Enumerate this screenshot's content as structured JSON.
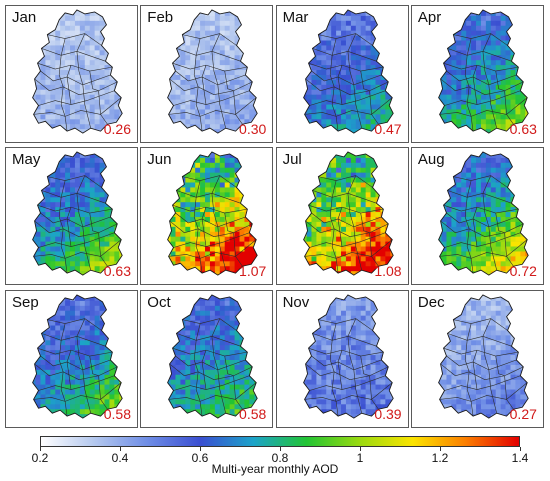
{
  "panels": [
    {
      "month": "Jan",
      "mean": "0.26",
      "level": 0.2,
      "hot": 0.0
    },
    {
      "month": "Feb",
      "mean": "0.30",
      "level": 0.2,
      "hot": 0.05
    },
    {
      "month": "Mar",
      "mean": "0.47",
      "level": 0.45,
      "hot": 0.35
    },
    {
      "month": "Apr",
      "mean": "0.63",
      "level": 0.55,
      "hot": 0.55
    },
    {
      "month": "May",
      "mean": "0.63",
      "level": 0.55,
      "hot": 0.6
    },
    {
      "month": "Jun",
      "mean": "1.07",
      "level": 0.85,
      "hot": 1.0
    },
    {
      "month": "Jul",
      "mean": "1.08",
      "level": 0.85,
      "hot": 1.0
    },
    {
      "month": "Aug",
      "mean": "0.72",
      "level": 0.6,
      "hot": 0.8
    },
    {
      "month": "Sep",
      "mean": "0.58",
      "level": 0.5,
      "hot": 0.55
    },
    {
      "month": "Oct",
      "mean": "0.58",
      "level": 0.55,
      "hot": 0.35
    },
    {
      "month": "Nov",
      "mean": "0.39",
      "level": 0.35,
      "hot": 0.0
    },
    {
      "month": "Dec",
      "mean": "0.27",
      "level": 0.25,
      "hot": 0.15
    }
  ],
  "colorbar": {
    "title": "Multi-year monthly AOD",
    "min": 0.2,
    "max": 1.4,
    "ticks": [
      {
        "value": 0.2,
        "label": "0.2"
      },
      {
        "value": 0.4,
        "label": "0.4"
      },
      {
        "value": 0.6,
        "label": "0.6"
      },
      {
        "value": 0.8,
        "label": "0.8"
      },
      {
        "value": 1.0,
        "label": "1"
      },
      {
        "value": 1.2,
        "label": "1.2"
      },
      {
        "value": 1.4,
        "label": "1.4"
      }
    ],
    "colors": [
      "#ffffff",
      "#b4c8ee",
      "#6f8ee6",
      "#3a4fd1",
      "#1ca3c9",
      "#22c434",
      "#9ada10",
      "#fbe400",
      "#fb7d00",
      "#e30000"
    ]
  }
}
